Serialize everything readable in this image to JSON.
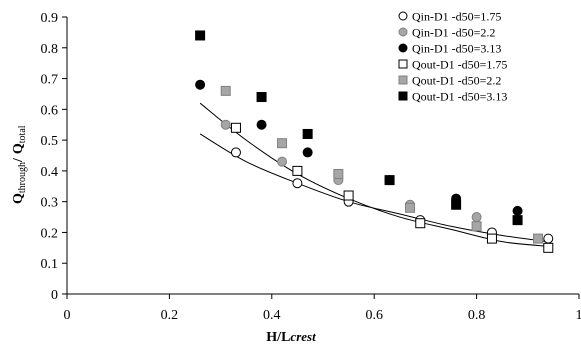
{
  "chart_data": {
    "type": "scatter",
    "title": "",
    "xlabel": {
      "main": "H/L",
      "subscript": "crest"
    },
    "ylabel": {
      "main1": "Q",
      "sub1": "through",
      "sep": "/",
      "main2": "Q",
      "sub2": "total"
    },
    "xlim": [
      0,
      1
    ],
    "ylim": [
      0,
      0.9
    ],
    "xticks": [
      "0",
      "0.2",
      "0.4",
      "0.6",
      "0.8",
      "1"
    ],
    "yticks": [
      "0",
      "0.1",
      "0.2",
      "0.3",
      "0.4",
      "0.5",
      "0.6",
      "0.7",
      "0.8",
      "0.9"
    ],
    "grid": false,
    "legend_position": "top-right",
    "series": [
      {
        "name": "Qin-D1  -d50=1.75",
        "marker": "circle",
        "fill": "#ffffff",
        "stroke": "#000000",
        "points": [
          [
            0.33,
            0.46
          ],
          [
            0.45,
            0.36
          ],
          [
            0.55,
            0.3
          ],
          [
            0.69,
            0.24
          ],
          [
            0.83,
            0.2
          ],
          [
            0.94,
            0.18
          ]
        ]
      },
      {
        "name": "Qin-D1  -d50=2.2",
        "marker": "circle",
        "fill": "#a6a6a6",
        "stroke": "#808080",
        "points": [
          [
            0.31,
            0.55
          ],
          [
            0.42,
            0.43
          ],
          [
            0.53,
            0.37
          ],
          [
            0.67,
            0.29
          ],
          [
            0.8,
            0.25
          ]
        ]
      },
      {
        "name": "Qin-D1  -d50=3.13",
        "marker": "circle",
        "fill": "#000000",
        "stroke": "#000000",
        "points": [
          [
            0.26,
            0.68
          ],
          [
            0.38,
            0.55
          ],
          [
            0.47,
            0.46
          ],
          [
            0.63,
            0.37
          ],
          [
            0.76,
            0.31
          ],
          [
            0.88,
            0.27
          ]
        ]
      },
      {
        "name": "Qout-D1 -d50=1.75",
        "marker": "square",
        "fill": "#ffffff",
        "stroke": "#000000",
        "points": [
          [
            0.33,
            0.54
          ],
          [
            0.45,
            0.4
          ],
          [
            0.55,
            0.32
          ],
          [
            0.69,
            0.23
          ],
          [
            0.83,
            0.18
          ],
          [
            0.94,
            0.15
          ]
        ]
      },
      {
        "name": "Qout-D1 -d50=2.2",
        "marker": "square",
        "fill": "#a6a6a6",
        "stroke": "#808080",
        "points": [
          [
            0.31,
            0.66
          ],
          [
            0.42,
            0.49
          ],
          [
            0.53,
            0.39
          ],
          [
            0.67,
            0.28
          ],
          [
            0.8,
            0.22
          ],
          [
            0.92,
            0.18
          ]
        ]
      },
      {
        "name": "Qout-D1 -d50=3.13",
        "marker": "square",
        "fill": "#000000",
        "stroke": "#000000",
        "points": [
          [
            0.26,
            0.84
          ],
          [
            0.38,
            0.64
          ],
          [
            0.47,
            0.52
          ],
          [
            0.63,
            0.37
          ],
          [
            0.76,
            0.29
          ],
          [
            0.88,
            0.24
          ]
        ]
      }
    ],
    "trendlines": [
      {
        "type": "power",
        "points": [
          [
            0.26,
            0.52
          ],
          [
            0.35,
            0.43
          ],
          [
            0.45,
            0.36
          ],
          [
            0.55,
            0.3
          ],
          [
            0.65,
            0.26
          ],
          [
            0.75,
            0.22
          ],
          [
            0.85,
            0.19
          ],
          [
            0.94,
            0.17
          ]
        ]
      },
      {
        "type": "power",
        "points": [
          [
            0.26,
            0.62
          ],
          [
            0.35,
            0.5
          ],
          [
            0.45,
            0.39
          ],
          [
            0.55,
            0.31
          ],
          [
            0.65,
            0.25
          ],
          [
            0.75,
            0.21
          ],
          [
            0.85,
            0.17
          ],
          [
            0.94,
            0.155
          ]
        ]
      }
    ]
  }
}
